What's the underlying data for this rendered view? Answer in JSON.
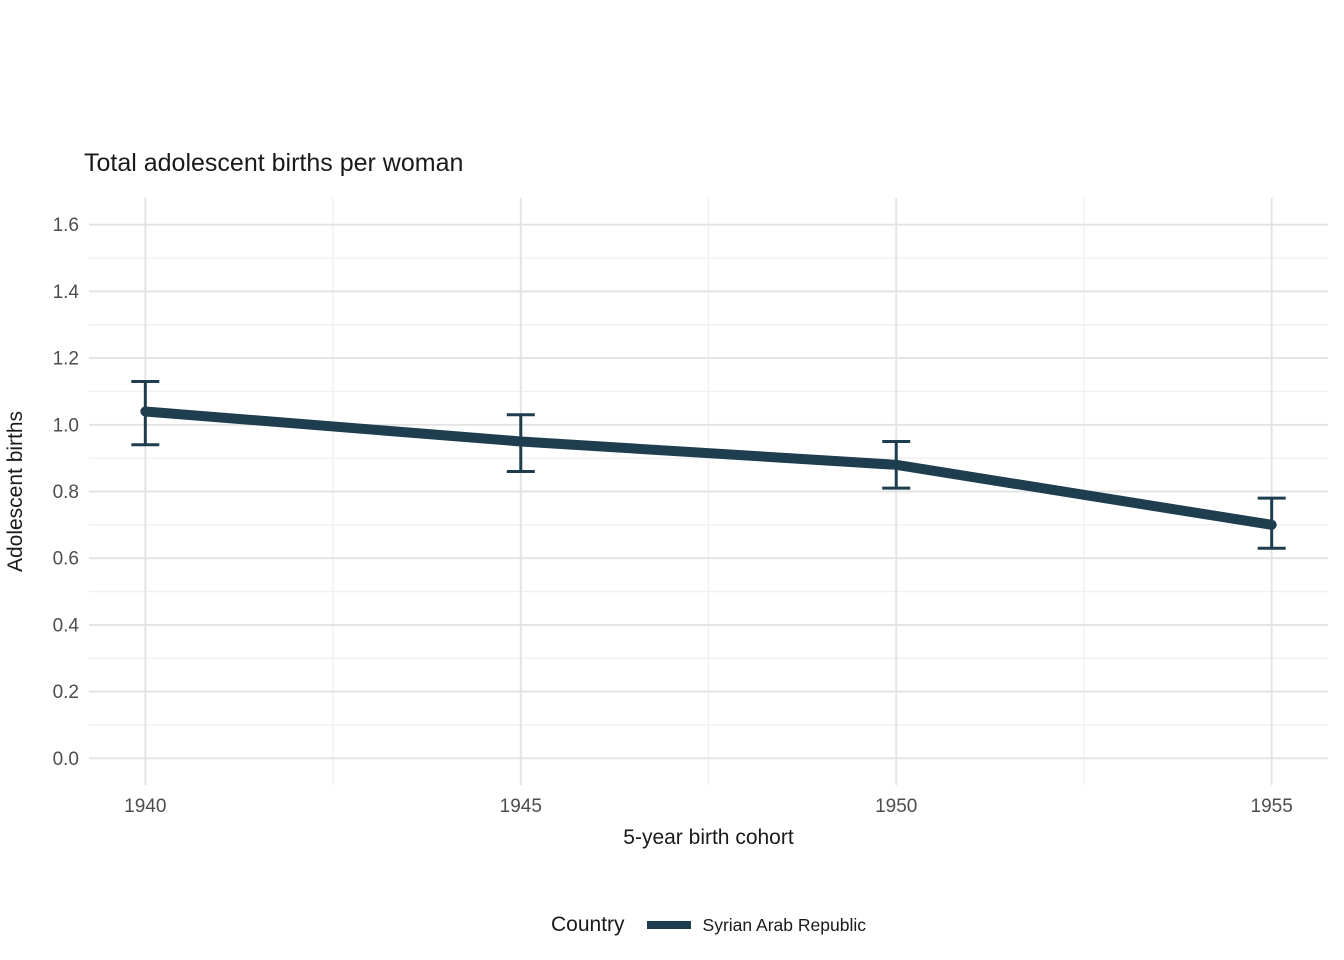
{
  "chart_data": {
    "type": "line",
    "title": "Total adolescent births per woman",
    "xlabel": "5-year birth cohort",
    "ylabel": "Adolescent births",
    "x": [
      1940,
      1945,
      1950,
      1955
    ],
    "xtick_labels": [
      "1940",
      "1945",
      "1950",
      "1955"
    ],
    "yticks": [
      0.0,
      0.2,
      0.4,
      0.6,
      0.8,
      1.0,
      1.2,
      1.4,
      1.6
    ],
    "ytick_labels": [
      "0.0",
      "0.2",
      "0.4",
      "0.6",
      "0.8",
      "1.0",
      "1.2",
      "1.4",
      "1.6"
    ],
    "xlim": [
      1940,
      1955
    ],
    "ylim": [
      0.0,
      1.6
    ],
    "grid": "major+minor",
    "error_bars": true,
    "legend": {
      "title": "Country",
      "position": "bottom"
    },
    "series": [
      {
        "name": "Syrian Arab Republic",
        "values": [
          1.04,
          0.95,
          0.88,
          0.7
        ],
        "ci_lower": [
          0.94,
          0.86,
          0.81,
          0.63
        ],
        "ci_upper": [
          1.13,
          1.03,
          0.95,
          0.78
        ],
        "color": "#1e3d4f"
      }
    ]
  },
  "colors": {
    "background": "#ffffff",
    "grid_major": "#e3e3e3",
    "grid_minor": "#f0f0f0",
    "tick_label": "#4d4d4d",
    "axis_title": "#1a1a1a",
    "title": "#1a1a1a"
  }
}
